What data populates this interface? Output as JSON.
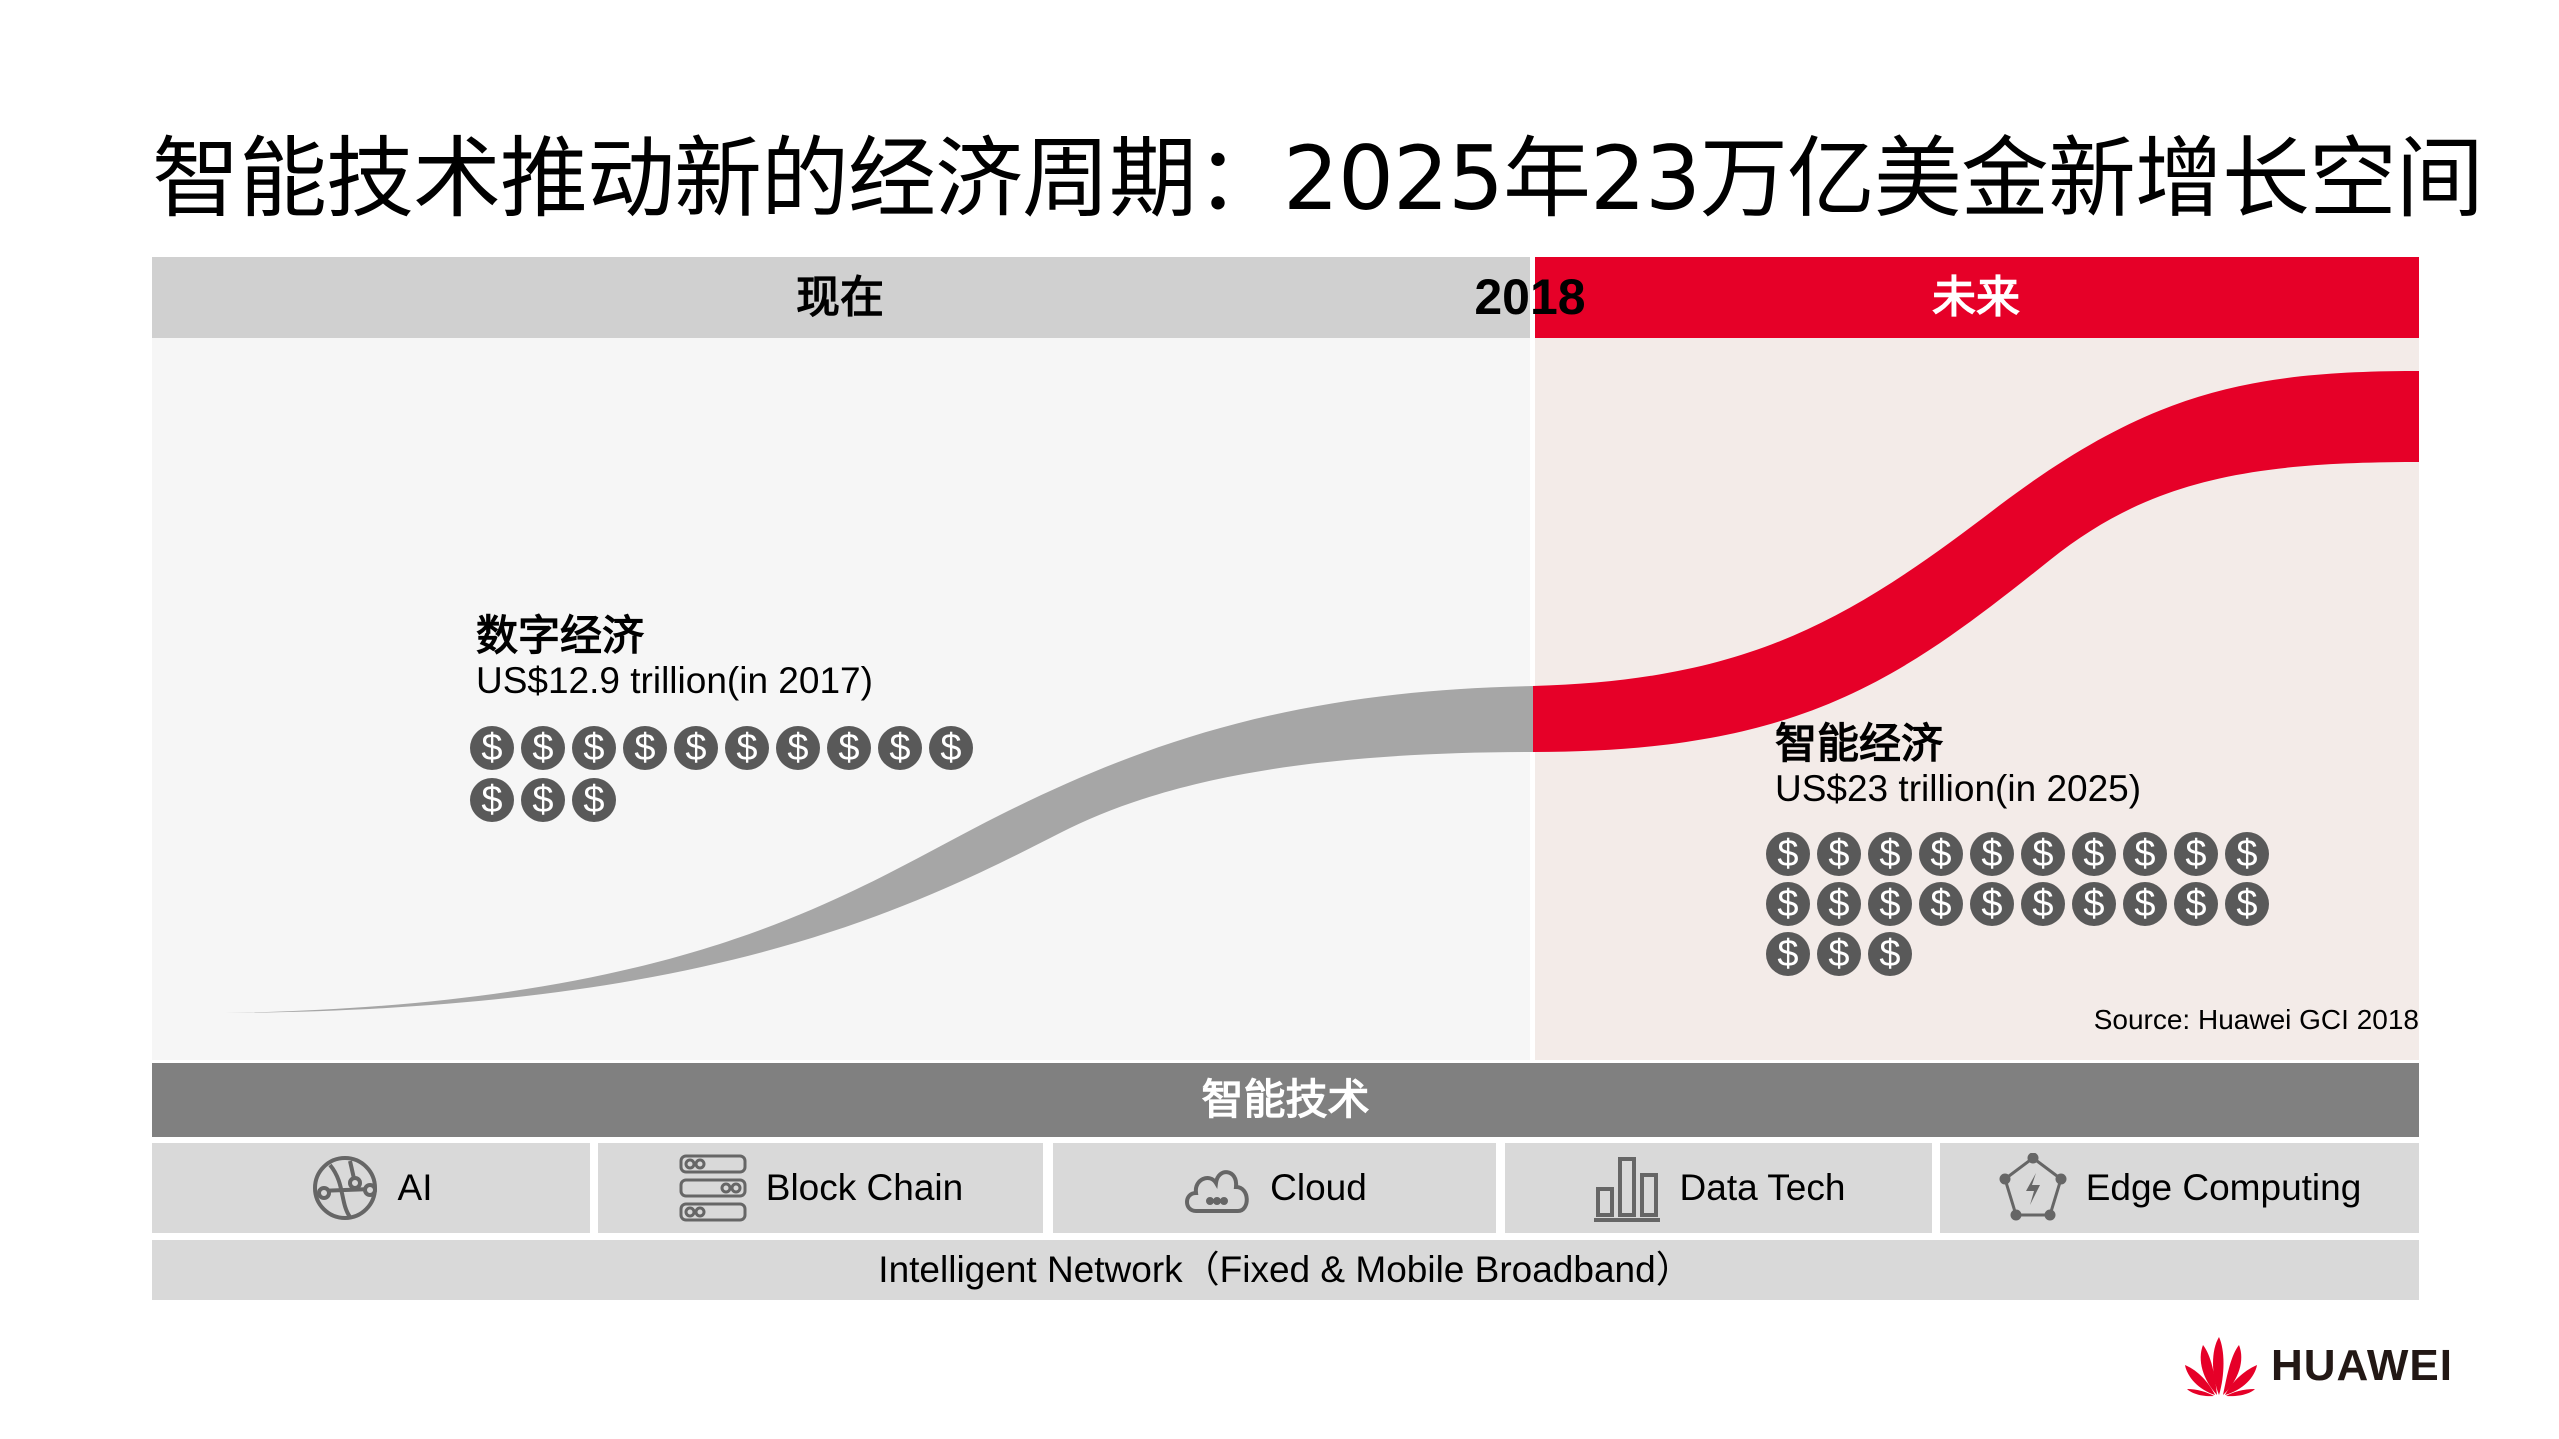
{
  "title": "智能技术推动新的经济周期：2025年23万亿美金新增长空间",
  "timeline": {
    "now_label": "现在",
    "year_label": "2018",
    "future_label": "未来"
  },
  "digital_economy": {
    "title": "数字经济",
    "value": "US$12.9 trillion(in 2017)",
    "coin_count": 13,
    "coin_symbol": "$"
  },
  "intelligent_economy": {
    "title": "智能经济",
    "value": "US$23 trillion(in 2025)",
    "coin_count": 23,
    "coin_symbol": "$"
  },
  "source": "Source: Huawei GCI 2018",
  "tech_bar_label": "智能技术",
  "technologies": [
    {
      "label": "AI",
      "icon": "ai-globe-icon"
    },
    {
      "label": "Block Chain",
      "icon": "blockchain-icon"
    },
    {
      "label": "Cloud",
      "icon": "cloud-icon"
    },
    {
      "label": "Data Tech",
      "icon": "bar-chart-icon"
    },
    {
      "label": "Edge Computing",
      "icon": "edge-computing-icon"
    }
  ],
  "network_label": "Intelligent Network（Fixed & Mobile Broadband）",
  "logo": {
    "text": "HUAWEI"
  },
  "colors": {
    "accent_red": "#e60028",
    "gray_curve": "#a6a6a6",
    "coin": "#595959",
    "header_gray": "#d0d0d0",
    "tech_bar": "#808080",
    "tile": "#d9d9d9"
  }
}
